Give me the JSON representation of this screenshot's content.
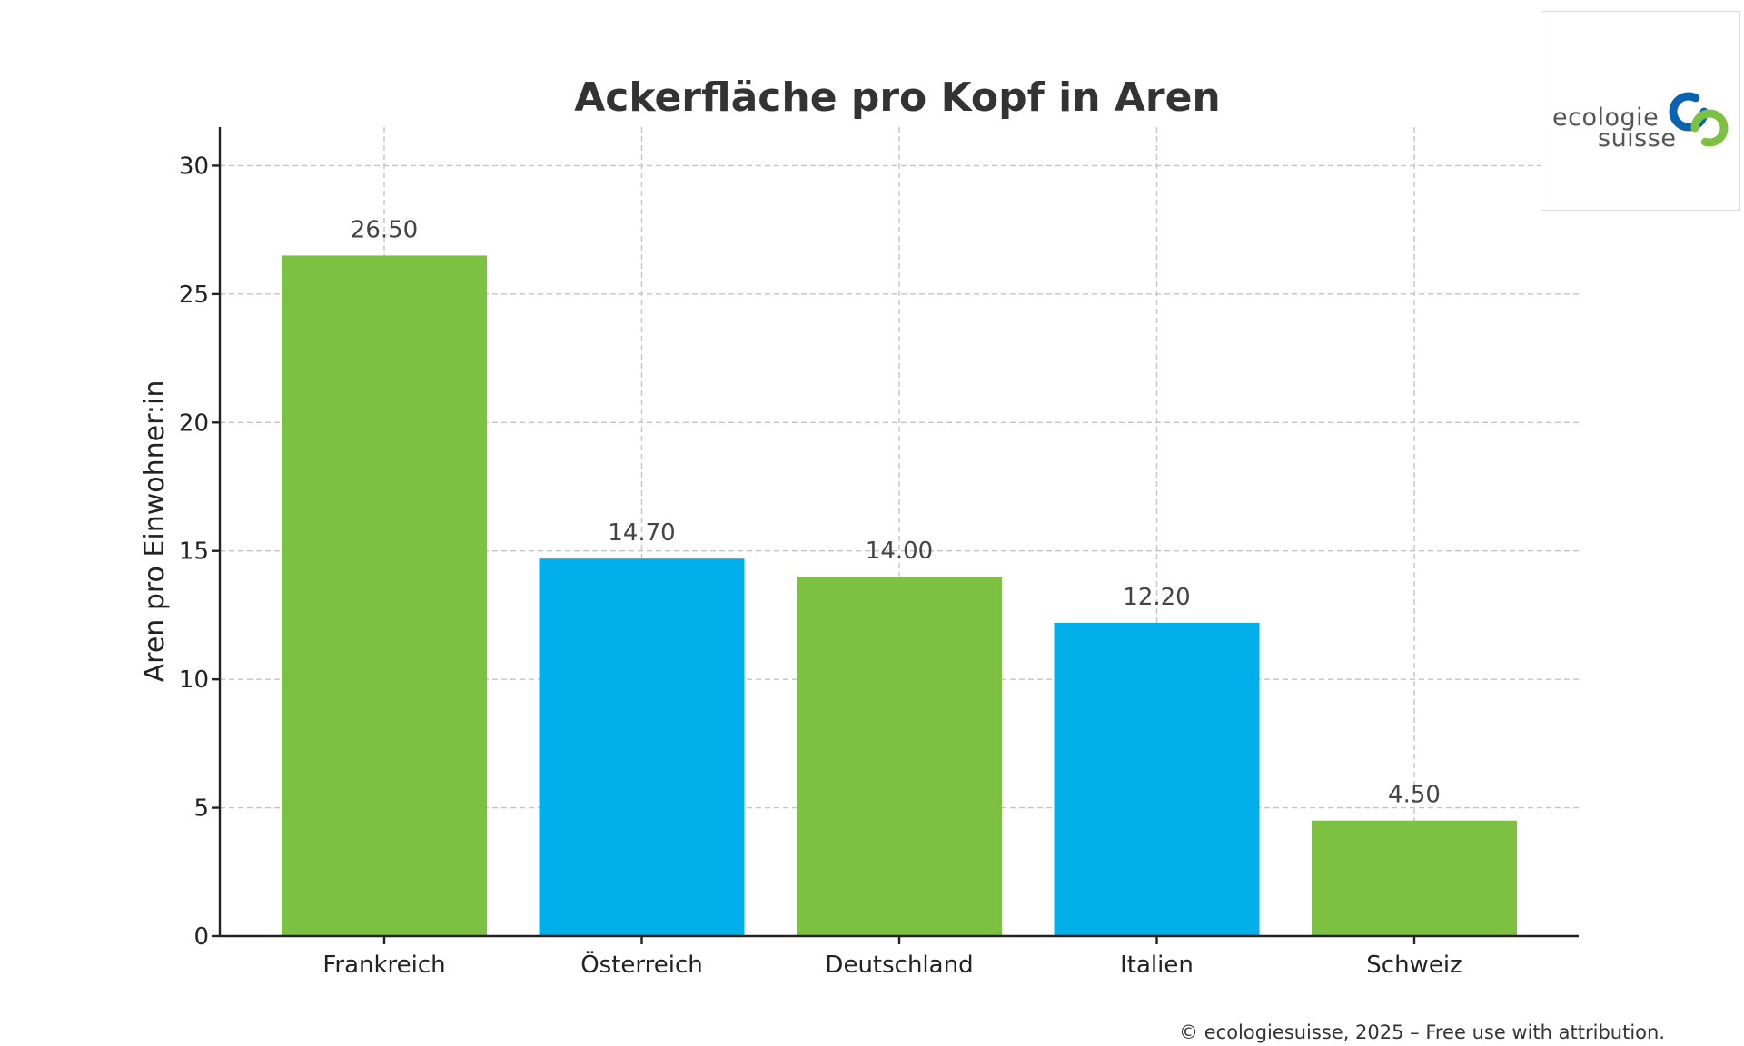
{
  "chart_data": {
    "type": "bar",
    "title": "Ackerfläche pro Kopf in Aren",
    "xlabel": "",
    "ylabel": "Aren pro Einwohner:in",
    "categories": [
      "Frankreich",
      "Österreich",
      "Deutschland",
      "Italien",
      "Schweiz"
    ],
    "values": [
      26.5,
      14.7,
      14.0,
      12.2,
      4.5
    ],
    "value_labels": [
      "26.50",
      "14.70",
      "14.00",
      "12.20",
      "4.50"
    ],
    "bar_colors": [
      "#7dc142",
      "#00aeea",
      "#7dc142",
      "#00aeea",
      "#7dc142"
    ],
    "ylim": [
      0,
      31.5
    ],
    "yticks": [
      0,
      5,
      10,
      15,
      20,
      25,
      30
    ],
    "grid": true,
    "legend": "none"
  },
  "logo": {
    "line1": "ecologie",
    "line2": "suisse",
    "colors": [
      "#0b62b0",
      "#7dc142"
    ]
  },
  "footer": {
    "text": "© ecologiesuisse, 2025 – Free use with attribution."
  }
}
